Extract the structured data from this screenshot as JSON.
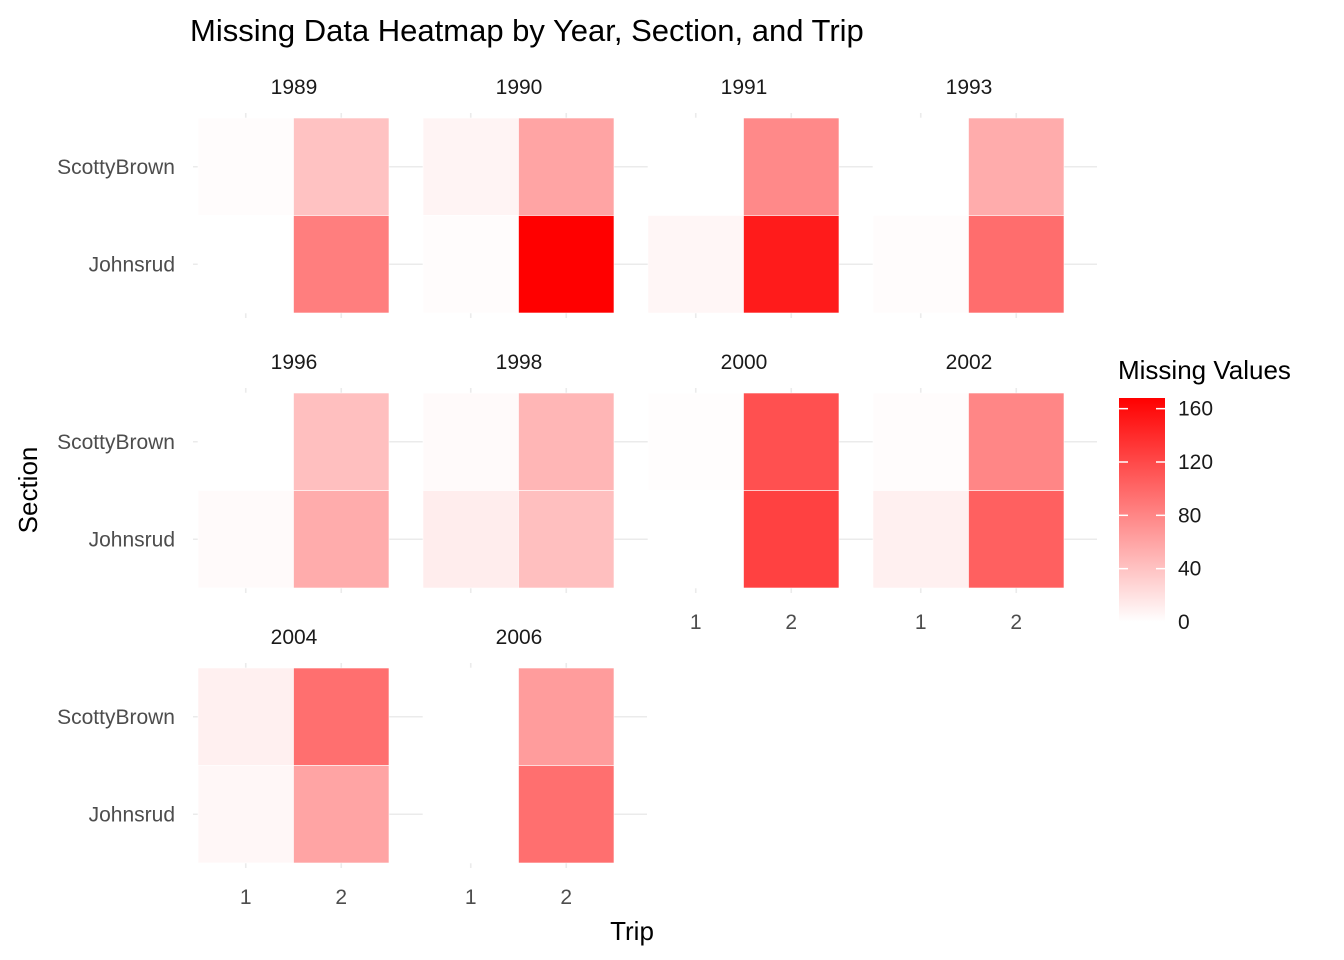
{
  "chart_data": {
    "type": "heatmap",
    "title": "Missing Data Heatmap by Year, Section, and Trip",
    "xlabel": "Trip",
    "ylabel": "Section",
    "x_categories": [
      "1",
      "2"
    ],
    "y_categories": [
      "ScottyBrown",
      "Johnsrud"
    ],
    "legend": {
      "title": "Missing Values",
      "ticks": [
        0,
        40,
        80,
        120,
        160
      ],
      "range": [
        0,
        168
      ],
      "low_color": "#ffffff",
      "high_color": "#ff0000",
      "placement": "right"
    },
    "facet_columns": 4,
    "facets": [
      {
        "year": "1989",
        "cells": [
          {
            "trip": "1",
            "section": "ScottyBrown",
            "value": 2
          },
          {
            "trip": "2",
            "section": "ScottyBrown",
            "value": 40
          },
          {
            "trip": "1",
            "section": "Johnsrud",
            "value": 0
          },
          {
            "trip": "2",
            "section": "Johnsrud",
            "value": 85
          }
        ]
      },
      {
        "year": "1990",
        "cells": [
          {
            "trip": "1",
            "section": "ScottyBrown",
            "value": 7
          },
          {
            "trip": "2",
            "section": "ScottyBrown",
            "value": 60
          },
          {
            "trip": "1",
            "section": "Johnsrud",
            "value": 2
          },
          {
            "trip": "2",
            "section": "Johnsrud",
            "value": 168
          }
        ]
      },
      {
        "year": "1991",
        "cells": [
          {
            "trip": "1",
            "section": "ScottyBrown",
            "value": 0
          },
          {
            "trip": "2",
            "section": "ScottyBrown",
            "value": 78
          },
          {
            "trip": "1",
            "section": "Johnsrud",
            "value": 6
          },
          {
            "trip": "2",
            "section": "Johnsrud",
            "value": 150
          }
        ]
      },
      {
        "year": "1993",
        "cells": [
          {
            "trip": "1",
            "section": "ScottyBrown",
            "value": 0
          },
          {
            "trip": "2",
            "section": "ScottyBrown",
            "value": 55
          },
          {
            "trip": "1",
            "section": "Johnsrud",
            "value": 2
          },
          {
            "trip": "2",
            "section": "Johnsrud",
            "value": 96
          }
        ]
      },
      {
        "year": "1996",
        "cells": [
          {
            "trip": "1",
            "section": "ScottyBrown",
            "value": 0
          },
          {
            "trip": "2",
            "section": "ScottyBrown",
            "value": 42
          },
          {
            "trip": "1",
            "section": "Johnsrud",
            "value": 3
          },
          {
            "trip": "2",
            "section": "Johnsrud",
            "value": 55
          }
        ]
      },
      {
        "year": "1998",
        "cells": [
          {
            "trip": "1",
            "section": "ScottyBrown",
            "value": 3
          },
          {
            "trip": "2",
            "section": "ScottyBrown",
            "value": 48
          },
          {
            "trip": "1",
            "section": "Johnsrud",
            "value": 12
          },
          {
            "trip": "2",
            "section": "Johnsrud",
            "value": 42
          }
        ]
      },
      {
        "year": "2000",
        "cells": [
          {
            "trip": "1",
            "section": "ScottyBrown",
            "value": 1
          },
          {
            "trip": "2",
            "section": "ScottyBrown",
            "value": 115
          },
          {
            "trip": "1",
            "section": "Johnsrud",
            "value": 0
          },
          {
            "trip": "2",
            "section": "Johnsrud",
            "value": 125
          }
        ]
      },
      {
        "year": "2002",
        "cells": [
          {
            "trip": "1",
            "section": "ScottyBrown",
            "value": 2
          },
          {
            "trip": "2",
            "section": "ScottyBrown",
            "value": 80
          },
          {
            "trip": "1",
            "section": "Johnsrud",
            "value": 10
          },
          {
            "trip": "2",
            "section": "Johnsrud",
            "value": 105
          }
        ]
      },
      {
        "year": "2004",
        "cells": [
          {
            "trip": "1",
            "section": "ScottyBrown",
            "value": 10
          },
          {
            "trip": "2",
            "section": "ScottyBrown",
            "value": 95
          },
          {
            "trip": "1",
            "section": "Johnsrud",
            "value": 5
          },
          {
            "trip": "2",
            "section": "Johnsrud",
            "value": 60
          }
        ]
      },
      {
        "year": "2006",
        "cells": [
          {
            "trip": "1",
            "section": "ScottyBrown",
            "value": 0
          },
          {
            "trip": "2",
            "section": "ScottyBrown",
            "value": 65
          },
          {
            "trip": "1",
            "section": "Johnsrud",
            "value": 0
          },
          {
            "trip": "2",
            "section": "Johnsrud",
            "value": 95
          }
        ]
      }
    ]
  }
}
